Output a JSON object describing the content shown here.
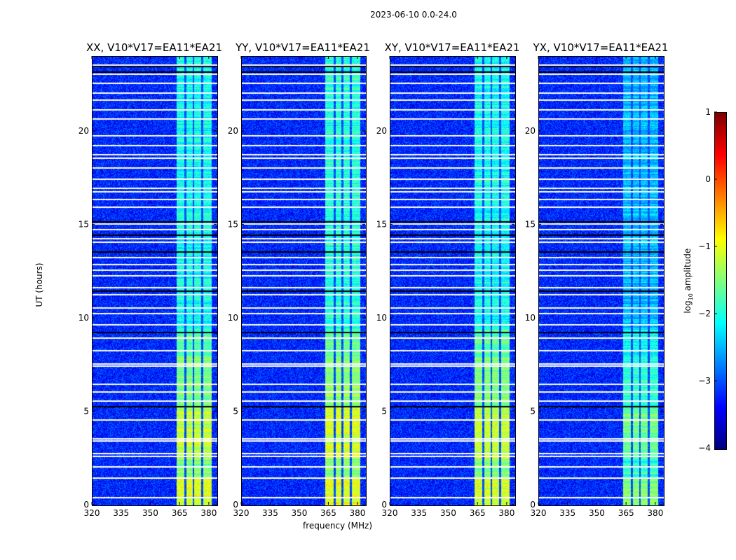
{
  "figure": {
    "title": "2023-06-10 0.0-24.0"
  },
  "chart_data": {
    "type": "heatmap",
    "title": "2023-06-10 0.0-24.0",
    "xlabel": "frequency (MHz)",
    "ylabel": "UT (hours)",
    "xlim": [
      320,
      384
    ],
    "ylim": [
      0,
      24
    ],
    "xticks": [
      "320",
      "335",
      "350",
      "365",
      "380"
    ],
    "xtick_values": [
      320,
      335,
      350,
      365,
      380
    ],
    "yticks": [
      "0",
      "5",
      "10",
      "15",
      "20"
    ],
    "ytick_values": [
      0,
      5,
      10,
      15,
      20
    ],
    "panels": [
      {
        "title": "XX, V10*V17=EA11*EA21",
        "band_level": -1.4
      },
      {
        "title": "YY, V10*V17=EA11*EA21",
        "band_level": -1.3
      },
      {
        "title": "XY, V10*V17=EA11*EA21",
        "band_level": -1.4
      },
      {
        "title": "YX, V10*V17=EA11*EA21",
        "band_level": -1.8
      }
    ],
    "background_level": -3.2,
    "band_mhz": [
      363,
      381
    ],
    "band_gaps_mhz": [
      367.6,
      371.6,
      376.0
    ],
    "flagged_times_white": [
      0.45,
      1.5,
      2.1,
      2.65,
      2.8,
      3.5,
      3.6,
      4.6,
      5.6,
      6.1,
      6.5,
      7.5,
      7.6,
      8.3,
      9.0,
      9.7,
      10.3,
      10.6,
      11.3,
      11.7,
      12.3,
      12.6,
      12.9,
      13.3,
      14.1,
      14.3,
      14.8,
      15.1,
      16.0,
      16.4,
      16.8,
      17.0,
      17.5,
      18.1,
      18.6,
      18.8,
      19.3,
      19.8,
      20.7,
      21.2,
      21.7,
      22.1,
      22.6,
      23.1,
      23.6
    ],
    "flagged_times_black": [
      5.3,
      9.3,
      11.5,
      13.6,
      14.5,
      15.2,
      23.2,
      23.5
    ],
    "colorbar": {
      "label": "log10 amplitude",
      "label_main": "log",
      "label_sub": "10",
      "label_rest": " amplitude",
      "range": [
        -4,
        1
      ],
      "colormap": "jet",
      "ticks": [
        "1",
        "0",
        "−1",
        "−2",
        "−3",
        "−4"
      ],
      "tick_values": [
        1,
        0,
        -1,
        -2,
        -3,
        -4
      ]
    }
  }
}
